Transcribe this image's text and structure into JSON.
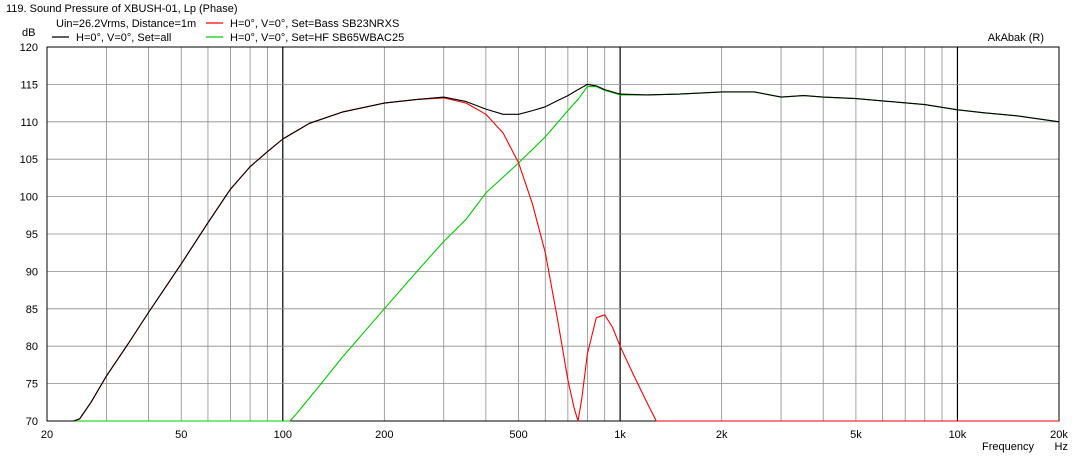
{
  "chart_data": {
    "type": "line",
    "title": "119. Sound Pressure of XBUSH-01, Lp (Phase)",
    "subtitle": "Uin=26.2Vrms, Distance=1m",
    "watermark": "AkAbak (R)",
    "xlabel": "Frequency",
    "xunit": "Hz",
    "ylabel": "dB",
    "xscale": "log",
    "xlim": [
      20,
      20000
    ],
    "ylim": [
      70,
      120
    ],
    "grid": true,
    "legend_position": "top-left",
    "x_ticks": [
      {
        "value": 20,
        "label": "20"
      },
      {
        "value": 50,
        "label": "50"
      },
      {
        "value": 100,
        "label": "100"
      },
      {
        "value": 200,
        "label": "200"
      },
      {
        "value": 500,
        "label": "500"
      },
      {
        "value": 1000,
        "label": "1k"
      },
      {
        "value": 2000,
        "label": "2k"
      },
      {
        "value": 5000,
        "label": "5k"
      },
      {
        "value": 10000,
        "label": "10k"
      },
      {
        "value": 20000,
        "label": "20k"
      }
    ],
    "y_ticks": [
      {
        "value": 120,
        "label": "120"
      },
      {
        "value": 115,
        "label": "115"
      },
      {
        "value": 110,
        "label": "110"
      },
      {
        "value": 105,
        "label": "105"
      },
      {
        "value": 100,
        "label": "100"
      },
      {
        "value": 95,
        "label": "95"
      },
      {
        "value": 90,
        "label": "90"
      },
      {
        "value": 85,
        "label": "85"
      },
      {
        "value": 80,
        "label": "80"
      },
      {
        "value": 75,
        "label": "75"
      },
      {
        "value": 70,
        "label": "70"
      }
    ],
    "series": [
      {
        "name": "H=0°, V=0°, Set=all",
        "color": "#000000",
        "points": [
          [
            20,
            70
          ],
          [
            24,
            70
          ],
          [
            25,
            70.3
          ],
          [
            27,
            72.5
          ],
          [
            30,
            76
          ],
          [
            35,
            80.5
          ],
          [
            40,
            84.5
          ],
          [
            50,
            91
          ],
          [
            60,
            96.5
          ],
          [
            70,
            101
          ],
          [
            80,
            104
          ],
          [
            90,
            106
          ],
          [
            100,
            107.7
          ],
          [
            120,
            109.8
          ],
          [
            150,
            111.3
          ],
          [
            200,
            112.5
          ],
          [
            250,
            113
          ],
          [
            300,
            113.3
          ],
          [
            350,
            112.7
          ],
          [
            400,
            111.7
          ],
          [
            450,
            111
          ],
          [
            500,
            111
          ],
          [
            550,
            111.5
          ],
          [
            600,
            112
          ],
          [
            650,
            112.8
          ],
          [
            700,
            113.5
          ],
          [
            750,
            114.3
          ],
          [
            800,
            115
          ],
          [
            850,
            114.8
          ],
          [
            900,
            114.3
          ],
          [
            1000,
            113.7
          ],
          [
            1200,
            113.6
          ],
          [
            1500,
            113.7
          ],
          [
            2000,
            114
          ],
          [
            2500,
            114
          ],
          [
            3000,
            113.3
          ],
          [
            3500,
            113.5
          ],
          [
            4000,
            113.3
          ],
          [
            5000,
            113.1
          ],
          [
            6000,
            112.8
          ],
          [
            8000,
            112.3
          ],
          [
            10000,
            111.6
          ],
          [
            12000,
            111.2
          ],
          [
            15000,
            110.8
          ],
          [
            20000,
            110
          ]
        ]
      },
      {
        "name": "H=0°, V=0°, Set=Bass SB23NRXS",
        "color": "#ff0000",
        "points": [
          [
            20,
            70
          ],
          [
            24,
            70
          ],
          [
            25,
            70.3
          ],
          [
            27,
            72.5
          ],
          [
            30,
            76
          ],
          [
            35,
            80.5
          ],
          [
            40,
            84.5
          ],
          [
            50,
            91
          ],
          [
            60,
            96.5
          ],
          [
            70,
            101
          ],
          [
            80,
            104
          ],
          [
            90,
            106
          ],
          [
            100,
            107.7
          ],
          [
            120,
            109.8
          ],
          [
            150,
            111.3
          ],
          [
            200,
            112.5
          ],
          [
            250,
            113
          ],
          [
            300,
            113.2
          ],
          [
            350,
            112.5
          ],
          [
            400,
            111
          ],
          [
            450,
            108.5
          ],
          [
            500,
            104.5
          ],
          [
            550,
            99
          ],
          [
            600,
            92.5
          ],
          [
            650,
            84
          ],
          [
            700,
            75.5
          ],
          [
            730,
            71.8
          ],
          [
            750,
            70
          ],
          [
            770,
            73
          ],
          [
            800,
            79
          ],
          [
            850,
            83.8
          ],
          [
            900,
            84.2
          ],
          [
            950,
            82.5
          ],
          [
            1000,
            80
          ],
          [
            1100,
            76
          ],
          [
            1200,
            72.5
          ],
          [
            1280,
            70
          ],
          [
            20000,
            70
          ]
        ]
      },
      {
        "name": "H=0°, V=0°, Set=HF SB65WBAC25",
        "color": "#00cc00",
        "points": [
          [
            20,
            70
          ],
          [
            100,
            70
          ],
          [
            105,
            70
          ],
          [
            110,
            71
          ],
          [
            130,
            75
          ],
          [
            150,
            78.5
          ],
          [
            200,
            85
          ],
          [
            250,
            90
          ],
          [
            300,
            94
          ],
          [
            350,
            97
          ],
          [
            400,
            100.5
          ],
          [
            500,
            104.5
          ],
          [
            600,
            108
          ],
          [
            700,
            111.5
          ],
          [
            750,
            113
          ],
          [
            800,
            114.7
          ],
          [
            850,
            114.7
          ],
          [
            900,
            114.2
          ],
          [
            1000,
            113.6
          ],
          [
            1200,
            113.6
          ],
          [
            1500,
            113.7
          ],
          [
            2000,
            114
          ],
          [
            2500,
            114
          ],
          [
            3000,
            113.3
          ],
          [
            3500,
            113.5
          ],
          [
            4000,
            113.3
          ],
          [
            5000,
            113.1
          ],
          [
            6000,
            112.8
          ],
          [
            8000,
            112.3
          ],
          [
            10000,
            111.6
          ],
          [
            12000,
            111.2
          ],
          [
            15000,
            110.8
          ],
          [
            20000,
            110
          ]
        ]
      }
    ]
  }
}
